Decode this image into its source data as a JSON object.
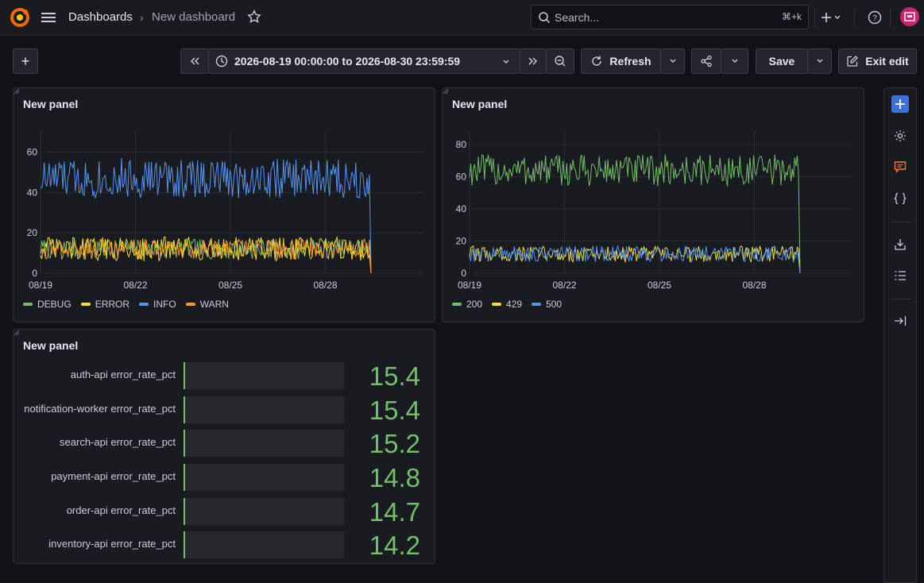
{
  "topbar": {
    "breadcrumb_root": "Dashboards",
    "breadcrumb_sep": "›",
    "breadcrumb_current": "New dashboard",
    "search_placeholder": "Search...",
    "search_shortcut": "⌘+k",
    "add_icon": "plus-icon",
    "colors": {
      "logo": "#f46800",
      "avatar": "#c8256c"
    }
  },
  "toolbar": {
    "add_label": "+",
    "time_range": "2026-08-19 00:00:00 to 2026-08-30 23:59:59",
    "refresh_label": "Refresh",
    "save_label": "Save",
    "exit_edit_label": "Exit edit"
  },
  "panels": [
    {
      "title": "New panel",
      "chart_data": {
        "type": "line",
        "x_ticks": [
          "08/19",
          "08/22",
          "08/25",
          "08/28"
        ],
        "y_ticks": [
          "0",
          "20",
          "40",
          "60"
        ],
        "ylim": [
          0,
          70
        ],
        "series": [
          {
            "name": "DEBUG",
            "color": "#73bf69",
            "mean": 12,
            "amplitude": 5
          },
          {
            "name": "ERROR",
            "color": "#fade2a",
            "mean": 12,
            "amplitude": 6
          },
          {
            "name": "INFO",
            "color": "#5794f2",
            "mean": 47,
            "amplitude": 10
          },
          {
            "name": "WARN",
            "color": "#ff9830",
            "mean": 12,
            "amplitude": 5
          }
        ]
      }
    },
    {
      "title": "New panel",
      "chart_data": {
        "type": "line",
        "x_ticks": [
          "08/19",
          "08/22",
          "08/25",
          "08/28"
        ],
        "y_ticks": [
          "0",
          "20",
          "40",
          "60",
          "80"
        ],
        "ylim": [
          0,
          88
        ],
        "series": [
          {
            "name": "200",
            "color": "#73bf69",
            "mean": 64,
            "amplitude": 10
          },
          {
            "name": "429",
            "color": "#fade2a",
            "mean": 12,
            "amplitude": 5
          },
          {
            "name": "500",
            "color": "#5794f2",
            "mean": 12,
            "amplitude": 5
          }
        ]
      }
    },
    {
      "title": "New panel",
      "bar_gauge": {
        "rows": [
          {
            "name": "auth-api error_rate_pct",
            "value": "15.4"
          },
          {
            "name": "notification-worker error_rate_pct",
            "value": "15.4"
          },
          {
            "name": "search-api error_rate_pct",
            "value": "15.2"
          },
          {
            "name": "payment-api error_rate_pct",
            "value": "14.8"
          },
          {
            "name": "order-api error_rate_pct",
            "value": "14.7"
          },
          {
            "name": "inventory-api error_rate_pct",
            "value": "14.2"
          }
        ],
        "color": "#73bf69"
      }
    }
  ]
}
